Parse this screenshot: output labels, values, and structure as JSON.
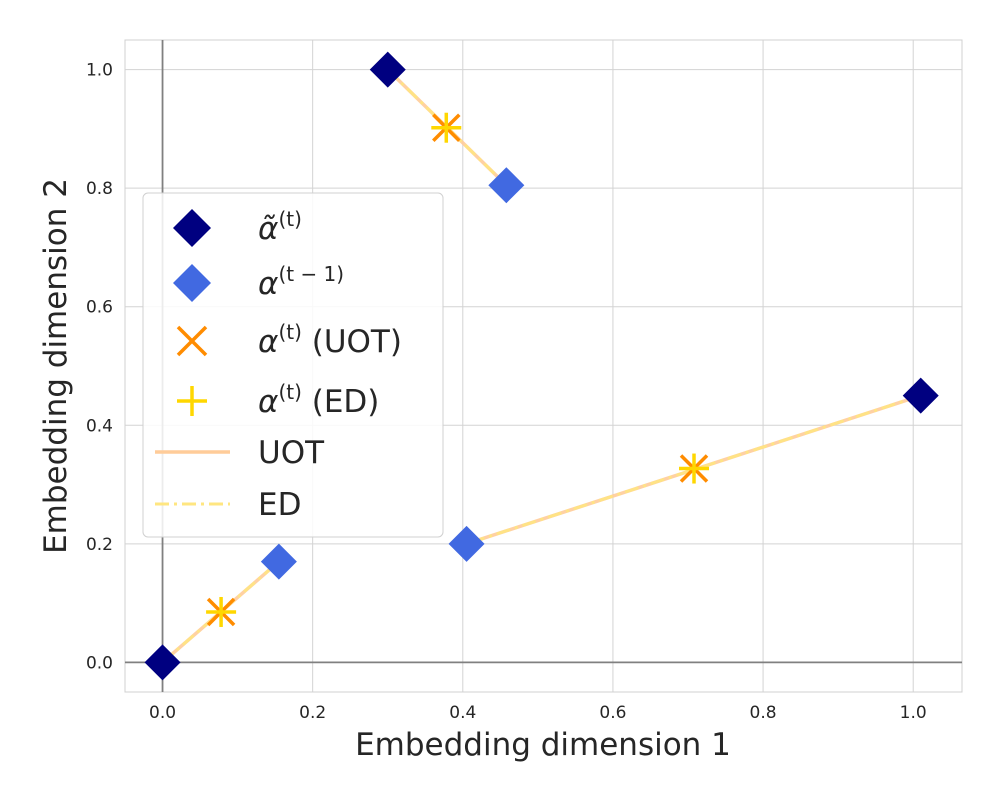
{
  "chart_data": {
    "type": "scatter",
    "xlabel": "Embedding dimension 1",
    "ylabel": "Embedding dimension 2",
    "xlim": [
      -0.05,
      1.065
    ],
    "ylim": [
      -0.05,
      1.05
    ],
    "xticks": [
      0.0,
      0.2,
      0.4,
      0.6,
      0.8,
      1.0
    ],
    "yticks": [
      0.0,
      0.2,
      0.4,
      0.6,
      0.8,
      1.0
    ],
    "xtick_labels": [
      "0.0",
      "0.2",
      "0.4",
      "0.6",
      "0.8",
      "1.0"
    ],
    "ytick_labels": [
      "0.0",
      "0.2",
      "0.4",
      "0.6",
      "0.8",
      "1.0"
    ],
    "grid": true,
    "zero_lines": true,
    "legend_position": "center-left",
    "colors": {
      "alpha_tilde": "#000080",
      "alpha_prev": "#4169E1",
      "uot_marker": "#FF8C00",
      "ed_marker": "#FFD700",
      "uot_line": "#FFCC99",
      "ed_line": "#FFE680"
    },
    "alpha_tilde": {
      "x": [
        0.0,
        0.3,
        1.01
      ],
      "y": [
        0.0,
        1.0,
        0.45
      ]
    },
    "alpha_prev": {
      "x": [
        0.155,
        0.458,
        0.405
      ],
      "y": [
        0.17,
        0.805,
        0.2
      ]
    },
    "alpha_uot": {
      "x": [
        0.078,
        0.378,
        0.708
      ],
      "y": [
        0.085,
        0.902,
        0.327
      ]
    },
    "alpha_ed": {
      "x": [
        0.078,
        0.378,
        0.708
      ],
      "y": [
        0.085,
        0.902,
        0.327
      ]
    },
    "lines": [
      {
        "from": [
          0.0,
          0.0
        ],
        "to": [
          0.155,
          0.17
        ]
      },
      {
        "from": [
          0.3,
          1.0
        ],
        "to": [
          0.458,
          0.805
        ]
      },
      {
        "from": [
          1.01,
          0.45
        ],
        "to": [
          0.405,
          0.2
        ]
      }
    ],
    "legend": [
      {
        "key": "alpha_tilde",
        "marker": "diamond",
        "symbol": "α̃",
        "sup": "(t)",
        "suffix": ""
      },
      {
        "key": "alpha_prev",
        "marker": "diamond",
        "symbol": "α",
        "sup": "(t − 1)",
        "suffix": ""
      },
      {
        "key": "alpha_uot",
        "marker": "x",
        "symbol": "α",
        "sup": "(t)",
        "suffix": " (UOT)"
      },
      {
        "key": "alpha_ed",
        "marker": "plus",
        "symbol": "α",
        "sup": "(t)",
        "suffix": " (ED)"
      },
      {
        "key": "uot_line",
        "marker": "line",
        "symbol": "",
        "sup": "",
        "suffix": "UOT"
      },
      {
        "key": "ed_line",
        "marker": "dashdot",
        "symbol": "",
        "sup": "",
        "suffix": "ED"
      }
    ]
  }
}
